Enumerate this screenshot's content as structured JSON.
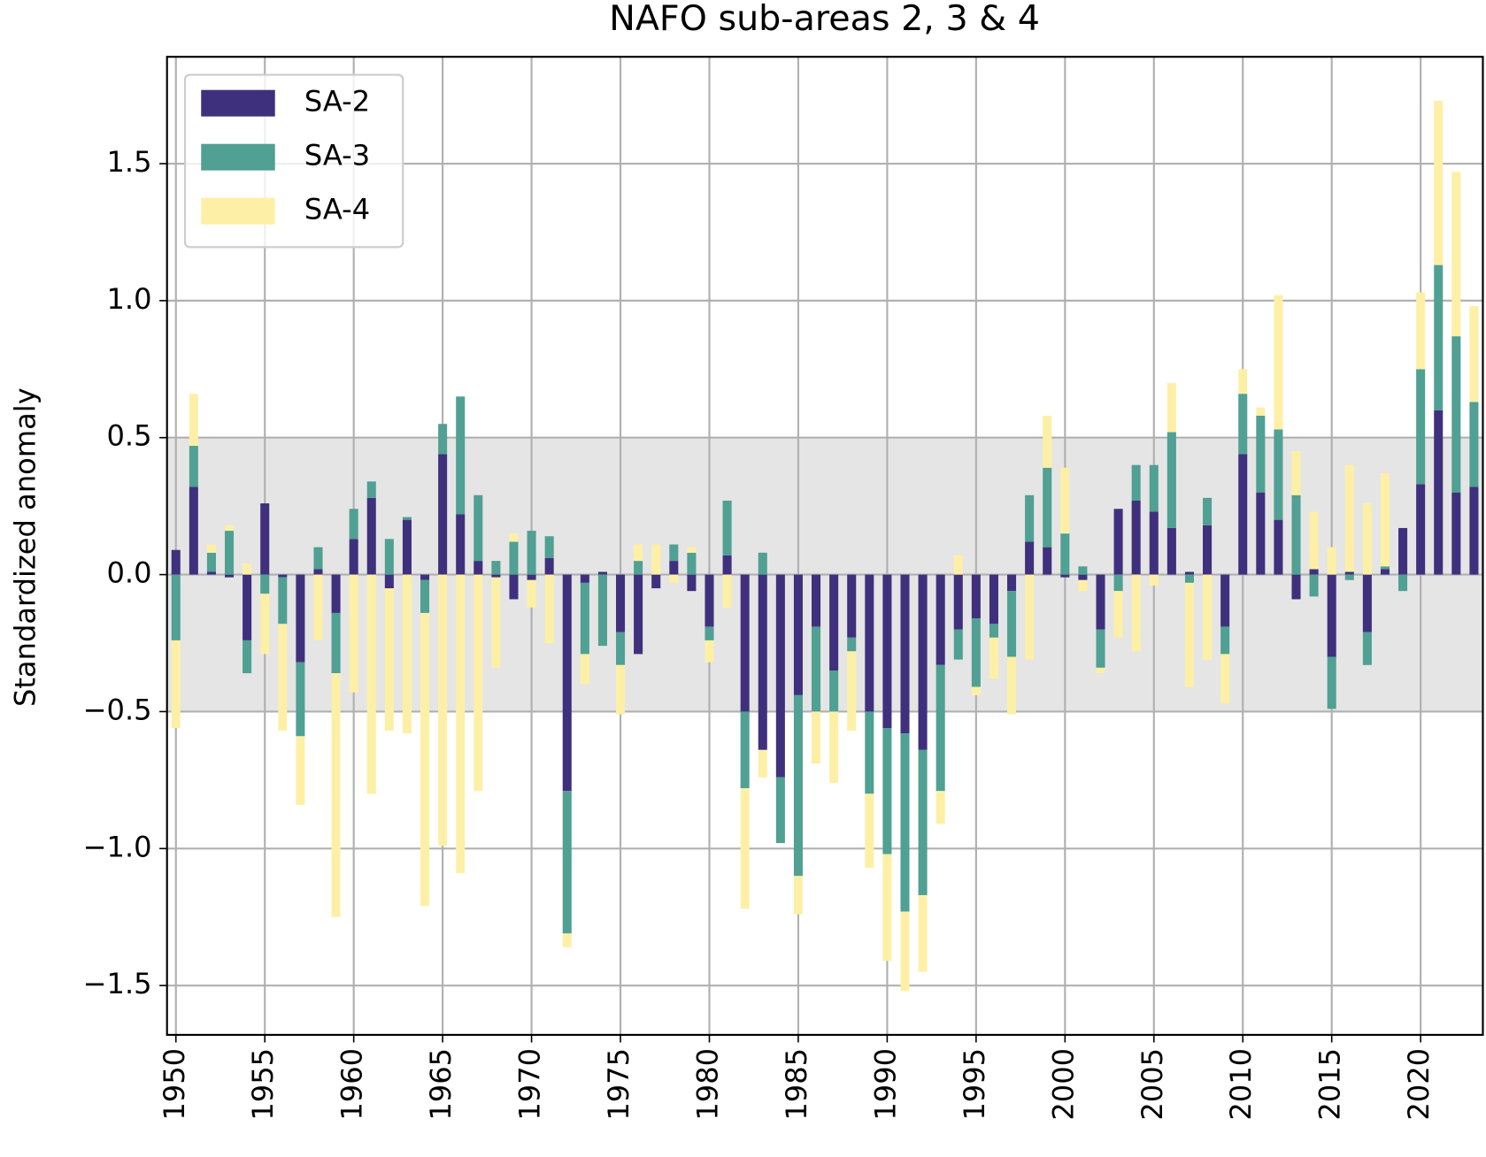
{
  "chart_data": {
    "type": "stacked_bar",
    "title": "NAFO sub-areas 2, 3 & 4",
    "y_label": "Standardized anomaly",
    "x": [
      1950,
      1951,
      1952,
      1953,
      1954,
      1955,
      1956,
      1957,
      1958,
      1959,
      1960,
      1961,
      1962,
      1963,
      1964,
      1965,
      1966,
      1967,
      1968,
      1969,
      1970,
      1971,
      1972,
      1973,
      1974,
      1975,
      1976,
      1977,
      1978,
      1979,
      1980,
      1981,
      1982,
      1983,
      1984,
      1985,
      1986,
      1987,
      1988,
      1989,
      1990,
      1991,
      1992,
      1993,
      1994,
      1995,
      1996,
      1997,
      1998,
      1999,
      2000,
      2001,
      2002,
      2003,
      2004,
      2005,
      2006,
      2007,
      2008,
      2009,
      2010,
      2011,
      2012,
      2013,
      2014,
      2015,
      2016,
      2017,
      2018,
      2019,
      2020,
      2021,
      2022,
      2023
    ],
    "series": [
      {
        "name": "SA-2",
        "color": "#3f307d",
        "values": [
          0.09,
          0.32,
          0.01,
          -0.01,
          -0.24,
          0.26,
          -0.01,
          -0.32,
          0.02,
          -0.14,
          0.13,
          0.28,
          -0.05,
          0.2,
          -0.02,
          0.44,
          0.22,
          0.05,
          -0.01,
          -0.09,
          -0.02,
          0.06,
          -0.79,
          -0.03,
          0.01,
          -0.21,
          -0.29,
          -0.05,
          0.05,
          -0.06,
          -0.19,
          0.07,
          -0.5,
          -0.64,
          -0.74,
          -0.44,
          -0.19,
          -0.35,
          -0.23,
          -0.5,
          -0.56,
          -0.58,
          -0.64,
          -0.33,
          -0.2,
          -0.16,
          -0.18,
          -0.06,
          0.12,
          0.1,
          -0.01,
          -0.02,
          -0.2,
          0.24,
          0.27,
          0.23,
          0.17,
          0.01,
          0.18,
          -0.19,
          0.44,
          0.3,
          0.2,
          -0.09,
          0.02,
          -0.3,
          0.01,
          -0.21,
          0.02,
          0.17,
          0.33,
          0.6,
          0.3,
          0.32
        ]
      },
      {
        "name": "SA-3",
        "color": "#50a093",
        "values": [
          -0.24,
          0.15,
          0.07,
          0.16,
          -0.12,
          -0.07,
          -0.17,
          -0.27,
          0.08,
          -0.22,
          0.11,
          0.06,
          0.13,
          0.01,
          -0.12,
          0.11,
          0.43,
          0.24,
          0.05,
          0.12,
          0.16,
          0.08,
          -0.52,
          -0.26,
          -0.26,
          -0.12,
          0.05,
          0.0,
          0.06,
          0.08,
          -0.05,
          0.2,
          -0.28,
          0.08,
          -0.24,
          -0.66,
          -0.31,
          -0.15,
          -0.05,
          -0.3,
          -0.46,
          -0.65,
          -0.53,
          -0.46,
          -0.11,
          -0.25,
          -0.05,
          -0.24,
          0.17,
          0.29,
          0.15,
          0.03,
          -0.14,
          -0.06,
          0.13,
          0.17,
          0.35,
          -0.03,
          0.1,
          -0.1,
          0.22,
          0.28,
          0.33,
          0.29,
          -0.08,
          -0.19,
          -0.02,
          -0.12,
          0.01,
          -0.06,
          0.42,
          0.53,
          0.57,
          0.31
        ]
      },
      {
        "name": "SA-4",
        "color": "#fdf0a6",
        "values": [
          -0.32,
          0.19,
          0.03,
          0.02,
          0.04,
          -0.22,
          -0.39,
          -0.25,
          -0.24,
          -0.89,
          -0.43,
          -0.8,
          -0.52,
          -0.58,
          -1.07,
          -0.99,
          -1.09,
          -0.79,
          -0.33,
          0.03,
          -0.1,
          -0.25,
          -0.05,
          -0.11,
          0.0,
          -0.18,
          0.06,
          0.11,
          -0.03,
          0.02,
          -0.08,
          -0.12,
          -0.44,
          -0.1,
          0.0,
          -0.14,
          -0.19,
          -0.26,
          -0.29,
          -0.27,
          -0.39,
          -0.29,
          -0.28,
          -0.12,
          0.07,
          -0.03,
          -0.15,
          -0.21,
          -0.31,
          0.19,
          0.24,
          -0.04,
          -0.02,
          -0.17,
          -0.28,
          -0.04,
          0.18,
          -0.38,
          -0.31,
          -0.18,
          0.09,
          0.03,
          0.49,
          0.16,
          0.21,
          0.1,
          0.39,
          0.26,
          0.34,
          0.0,
          0.28,
          0.6,
          0.6,
          0.35
        ]
      }
    ],
    "xlim": [
      1949.5,
      2023.5
    ],
    "xticks": [
      1950,
      1955,
      1960,
      1965,
      1970,
      1975,
      1980,
      1985,
      1990,
      1995,
      2000,
      2005,
      2010,
      2015,
      2020
    ],
    "ylim": [
      -1.68,
      1.89
    ],
    "yticks": [
      {
        "value": -1.5,
        "label": "−1.5"
      },
      {
        "value": -1.0,
        "label": "−1.0"
      },
      {
        "value": -0.5,
        "label": "−0.5"
      },
      {
        "value": 0,
        "label": "0.0"
      },
      0.5,
      {
        "value": 1.0,
        "label": "1.0"
      },
      1.5
    ],
    "shaded_band": [
      -0.5,
      0.5
    ],
    "grid": true,
    "legend": "upper left"
  }
}
